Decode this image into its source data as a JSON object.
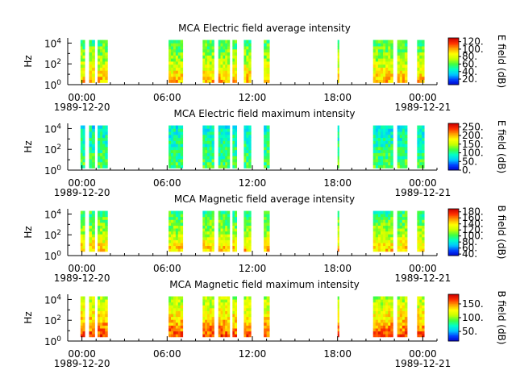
{
  "colors": {
    "colormap": [
      "#0000c8",
      "#0040ff",
      "#00c8ff",
      "#00ffc8",
      "#40ff40",
      "#c8ff00",
      "#ffff00",
      "#ffa000",
      "#ff3000",
      "#c80000"
    ],
    "axis": "#000000",
    "background": "#ffffff"
  },
  "chart_data": [
    {
      "type": "heatmap",
      "title": "MCA  Electric field average intensity",
      "ylabel": "Hz",
      "colorbar_label": "E field (dB)",
      "colorbar_ticks": [
        "20.",
        "40.",
        "60.",
        "80.",
        "100.",
        "120."
      ],
      "colorbar_range": [
        5,
        130
      ],
      "yticks": [
        {
          "base": "10",
          "exp": "0"
        },
        {
          "base": "10",
          "exp": "2"
        },
        {
          "base": "10",
          "exp": "4"
        }
      ],
      "ylim_log10": [
        0,
        4.5
      ],
      "xlim_hours": [
        -1,
        25
      ],
      "xticks": [
        {
          "hour": 0,
          "time": "00:00",
          "date": "1989-12-20"
        },
        {
          "hour": 6,
          "time": "06:00",
          "date": ""
        },
        {
          "hour": 12,
          "time": "12:00",
          "date": ""
        },
        {
          "hour": 18,
          "time": "18:00",
          "date": ""
        },
        {
          "hour": 24,
          "time": "00:00",
          "date": "1989-12-21"
        }
      ],
      "data_segments_hours": [
        [
          -0.1,
          0.2
        ],
        [
          0.5,
          0.9
        ],
        [
          1.1,
          1.8
        ],
        [
          6.1,
          7.1
        ],
        [
          8.5,
          9.3
        ],
        [
          9.6,
          10.4
        ],
        [
          10.6,
          10.9
        ],
        [
          11.4,
          11.9
        ],
        [
          12.8,
          13.2
        ],
        [
          18.0,
          18.1
        ],
        [
          20.5,
          21.9
        ],
        [
          22.2,
          22.9
        ],
        [
          23.6,
          24.1
        ]
      ],
      "band_log10": [
        0.2,
        4.3
      ],
      "typical_intensity": {
        "low_freq": 100,
        "mid_freq": 75,
        "high_freq": 55
      }
    },
    {
      "type": "heatmap",
      "title": "MCA  Electric field maximum intensity",
      "ylabel": "Hz",
      "colorbar_label": "E field (dB)",
      "colorbar_ticks": [
        "0.",
        "50.",
        "100.",
        "150.",
        "200.",
        "250."
      ],
      "colorbar_range": [
        0,
        270
      ],
      "yticks": [
        {
          "base": "10",
          "exp": "0"
        },
        {
          "base": "10",
          "exp": "2"
        },
        {
          "base": "10",
          "exp": "4"
        }
      ],
      "ylim_log10": [
        0,
        4.5
      ],
      "xlim_hours": [
        -1,
        25
      ],
      "xticks": [
        {
          "hour": 0,
          "time": "00:00",
          "date": "1989-12-20"
        },
        {
          "hour": 6,
          "time": "06:00",
          "date": ""
        },
        {
          "hour": 12,
          "time": "12:00",
          "date": ""
        },
        {
          "hour": 18,
          "time": "18:00",
          "date": ""
        },
        {
          "hour": 24,
          "time": "00:00",
          "date": "1989-12-21"
        }
      ],
      "data_segments_hours": [
        [
          -0.1,
          0.2
        ],
        [
          0.5,
          0.9
        ],
        [
          1.1,
          1.8
        ],
        [
          6.1,
          7.1
        ],
        [
          8.5,
          9.3
        ],
        [
          9.6,
          10.4
        ],
        [
          10.6,
          10.9
        ],
        [
          11.4,
          11.9
        ],
        [
          12.8,
          13.2
        ],
        [
          18.0,
          18.1
        ],
        [
          20.5,
          21.9
        ],
        [
          22.2,
          22.9
        ],
        [
          23.6,
          24.1
        ]
      ],
      "band_log10": [
        0.2,
        4.3
      ],
      "typical_intensity": {
        "low_freq": 120,
        "mid_freq": 100,
        "high_freq": 80
      }
    },
    {
      "type": "heatmap",
      "title": "MCA  Magnetic field average intensity",
      "ylabel": "Hz",
      "colorbar_label": "B field (dB)",
      "colorbar_ticks": [
        "40.",
        "60.",
        "80.",
        "100.",
        "120.",
        "140.",
        "160.",
        "180."
      ],
      "colorbar_range": [
        35,
        190
      ],
      "yticks": [
        {
          "base": "10",
          "exp": "0"
        },
        {
          "base": "10",
          "exp": "2"
        },
        {
          "base": "10",
          "exp": "4"
        }
      ],
      "ylim_log10": [
        0,
        4.5
      ],
      "xlim_hours": [
        -1,
        25
      ],
      "xticks": [
        {
          "hour": 0,
          "time": "00:00",
          "date": "1989-12-20"
        },
        {
          "hour": 6,
          "time": "06:00",
          "date": ""
        },
        {
          "hour": 12,
          "time": "12:00",
          "date": ""
        },
        {
          "hour": 18,
          "time": "18:00",
          "date": ""
        },
        {
          "hour": 24,
          "time": "00:00",
          "date": "1989-12-21"
        }
      ],
      "data_segments_hours": [
        [
          -0.1,
          0.2
        ],
        [
          0.5,
          0.9
        ],
        [
          1.1,
          1.8
        ],
        [
          6.1,
          7.1
        ],
        [
          8.5,
          9.3
        ],
        [
          9.6,
          10.4
        ],
        [
          10.6,
          10.9
        ],
        [
          11.4,
          11.9
        ],
        [
          12.8,
          13.2
        ],
        [
          18.0,
          18.1
        ],
        [
          20.5,
          21.9
        ],
        [
          22.2,
          22.9
        ],
        [
          23.6,
          24.1
        ]
      ],
      "band_log10": [
        0.4,
        4.3
      ],
      "typical_intensity": {
        "low_freq": 150,
        "mid_freq": 115,
        "high_freq": 95
      }
    },
    {
      "type": "heatmap",
      "title": "MCA  Magnetic field maximum intensity",
      "ylabel": "Hz",
      "colorbar_label": "B field (dB)",
      "colorbar_ticks": [
        "50.",
        "100.",
        "150."
      ],
      "colorbar_range": [
        15,
        185
      ],
      "yticks": [
        {
          "base": "10",
          "exp": "0"
        },
        {
          "base": "10",
          "exp": "2"
        },
        {
          "base": "10",
          "exp": "4"
        }
      ],
      "ylim_log10": [
        0,
        4.5
      ],
      "xlim_hours": [
        -1,
        25
      ],
      "xticks": [
        {
          "hour": 0,
          "time": "00:00",
          "date": "1989-12-20"
        },
        {
          "hour": 6,
          "time": "06:00",
          "date": ""
        },
        {
          "hour": 12,
          "time": "12:00",
          "date": ""
        },
        {
          "hour": 18,
          "time": "18:00",
          "date": ""
        },
        {
          "hour": 24,
          "time": "00:00",
          "date": "1989-12-21"
        }
      ],
      "data_segments_hours": [
        [
          -0.1,
          0.2
        ],
        [
          0.5,
          0.9
        ],
        [
          1.1,
          1.8
        ],
        [
          6.1,
          7.1
        ],
        [
          8.5,
          9.3
        ],
        [
          9.6,
          10.4
        ],
        [
          10.6,
          10.9
        ],
        [
          11.4,
          11.9
        ],
        [
          12.8,
          13.2
        ],
        [
          18.0,
          18.1
        ],
        [
          20.5,
          21.9
        ],
        [
          22.2,
          22.9
        ],
        [
          23.6,
          24.1
        ]
      ],
      "band_log10": [
        0.4,
        4.3
      ],
      "typical_intensity": {
        "low_freq": 165,
        "mid_freq": 130,
        "high_freq": 105
      }
    }
  ]
}
